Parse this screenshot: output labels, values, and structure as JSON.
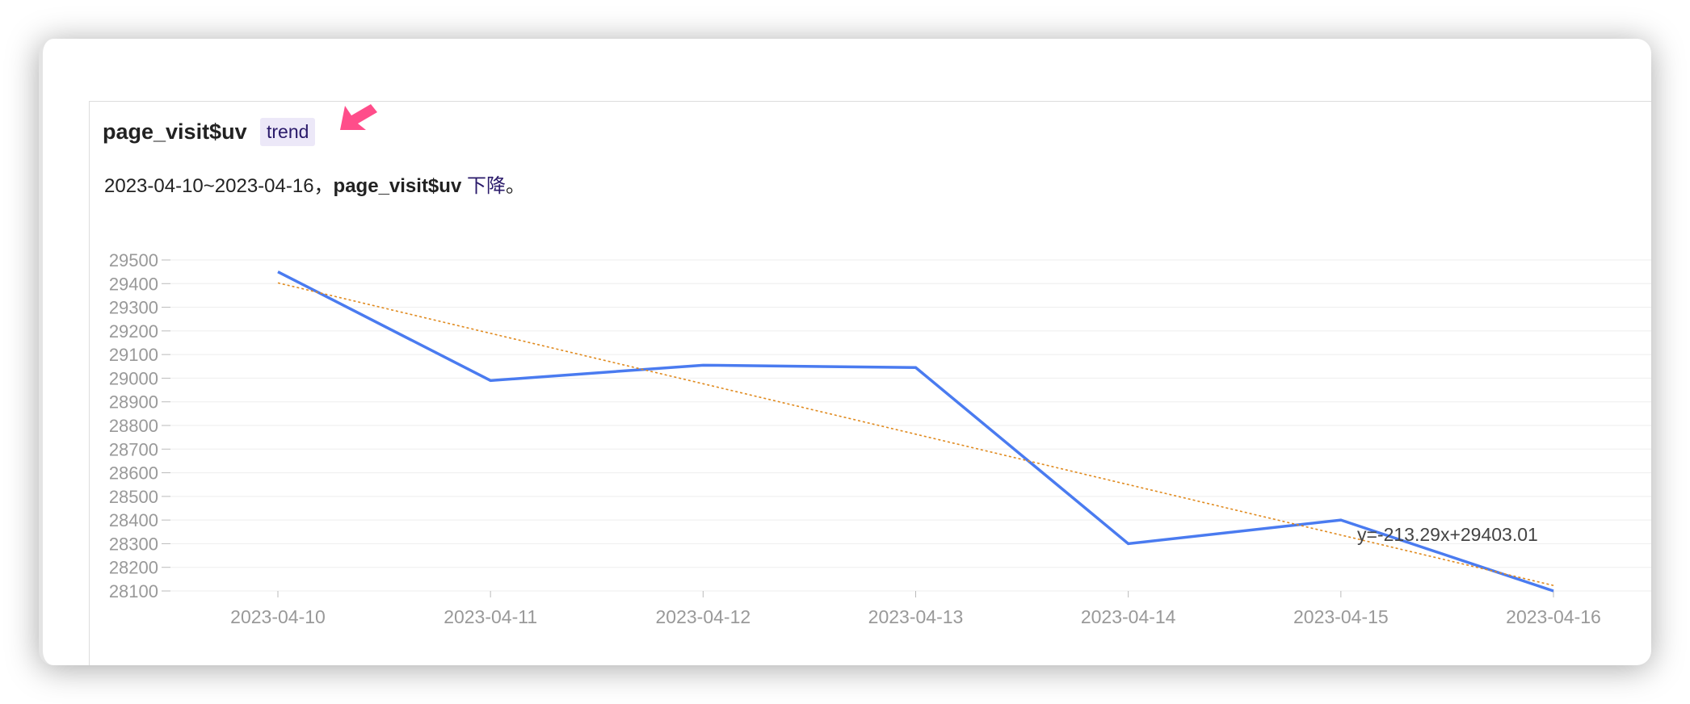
{
  "header": {
    "title": "page_visit$uv",
    "tag": "trend"
  },
  "description": {
    "range": "2023-04-10~2023-04-16，",
    "metric": "page_visit$uv",
    "trend": "下降",
    "end": "。"
  },
  "chart_data": {
    "type": "line",
    "categories": [
      "2023-04-10",
      "2023-04-11",
      "2023-04-12",
      "2023-04-13",
      "2023-04-14",
      "2023-04-15",
      "2023-04-16"
    ],
    "values": [
      29450,
      28990,
      29055,
      29045,
      28300,
      28400,
      28100
    ],
    "color": "#4a7bf0",
    "trend_line": {
      "label": "y=-213.29x+29403.01",
      "color": "#e08a1e",
      "values": [
        29403.01,
        29189.72,
        28976.43,
        28763.14,
        28549.85,
        28336.56,
        28123.27
      ]
    },
    "ylim": [
      28100,
      29500
    ],
    "yticks": [
      28100,
      28200,
      28300,
      28400,
      28500,
      28600,
      28700,
      28800,
      28900,
      29000,
      29100,
      29200,
      29300,
      29400,
      29500
    ],
    "grid": true
  }
}
